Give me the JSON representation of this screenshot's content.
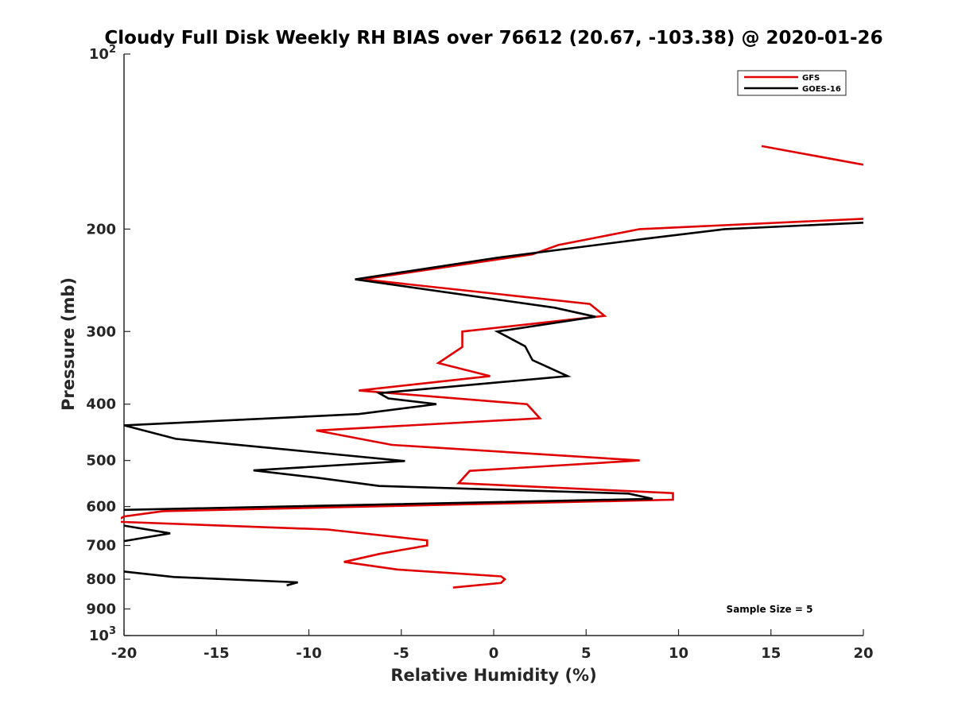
{
  "chart_data": {
    "type": "line",
    "title": "Cloudy Full Disk Weekly RH BIAS over 76612 (20.67, -103.38) @ 2020-01-26",
    "xlabel": "Relative Humidity (%)",
    "ylabel": "Pressure (mb)",
    "xlim": [
      -20,
      20
    ],
    "ylim": [
      100,
      1000
    ],
    "yscale": "log",
    "y_reversed": true,
    "x_ticks": [
      "-20",
      "-15",
      "-10",
      "-5",
      "0",
      "5",
      "10",
      "15",
      "20"
    ],
    "y_ticks": [
      {
        "value": 200,
        "label": "200"
      },
      {
        "value": 300,
        "label": "300"
      },
      {
        "value": 400,
        "label": "400"
      },
      {
        "value": 500,
        "label": "500"
      },
      {
        "value": 600,
        "label": "600"
      },
      {
        "value": 700,
        "label": "700"
      },
      {
        "value": 800,
        "label": "800"
      },
      {
        "value": 900,
        "label": "900"
      }
    ],
    "y_limit_labels": {
      "top": {
        "value": 100,
        "base": "10",
        "exp": "2"
      },
      "bottom": {
        "value": 1000,
        "base": "10",
        "exp": "3"
      }
    },
    "legend": {
      "position": "top-right",
      "entries": [
        "GFS",
        "GOES-16"
      ]
    },
    "annotation": "Sample Size = 5",
    "series": [
      {
        "name": "GFS",
        "color": "#e00000",
        "segments": [
          [
            [
              14.5,
              144
            ],
            [
              20,
              155
            ]
          ],
          [
            [
              20,
              192
            ],
            [
              7.9,
              200
            ],
            [
              3.5,
              213
            ],
            [
              2.1,
              221
            ],
            [
              -7.1,
              244
            ],
            [
              5.2,
              269
            ],
            [
              6.0,
              282
            ],
            [
              -1.7,
              300
            ],
            [
              -1.7,
              319
            ],
            [
              -3.0,
              340
            ],
            [
              -0.2,
              358
            ],
            [
              -7.3,
              379
            ],
            [
              1.8,
              400
            ],
            [
              2.5,
              423
            ],
            [
              -9.6,
              444
            ],
            [
              -5.5,
              470
            ],
            [
              7.9,
              500
            ],
            [
              -1.3,
              521
            ],
            [
              -1.9,
              547
            ],
            [
              9.7,
              569
            ],
            [
              9.7,
              584
            ],
            [
              -17.9,
              611
            ],
            [
              -20,
              624
            ],
            [
              -20.5,
              637
            ],
            [
              -9.0,
              657
            ],
            [
              -3.6,
              686
            ],
            [
              -3.6,
              700
            ],
            [
              -6.2,
              724
            ],
            [
              -8.1,
              747
            ],
            [
              -5.2,
              770
            ],
            [
              0.4,
              791
            ],
            [
              0.6,
              800
            ],
            [
              0.4,
              812
            ],
            [
              -2.2,
              827
            ]
          ]
        ]
      },
      {
        "name": "GOES-16",
        "color": "#000000",
        "segments": [
          [
            [
              20,
              195
            ],
            [
              12.5,
              200
            ],
            [
              8.1,
              208
            ],
            [
              0.2,
              224
            ],
            [
              -7.5,
              244
            ],
            [
              3.3,
              273
            ],
            [
              5.5,
              283
            ],
            [
              0.2,
              300
            ],
            [
              1.7,
              318
            ],
            [
              2.1,
              336
            ],
            [
              4.0,
              358
            ],
            [
              -6.2,
              383
            ],
            [
              -5.7,
              391
            ],
            [
              -3.1,
              400
            ],
            [
              -7.3,
              416
            ],
            [
              -20,
              435
            ],
            [
              -17.2,
              459
            ],
            [
              -4.8,
              501
            ],
            [
              -13.0,
              520
            ],
            [
              -9.6,
              535
            ],
            [
              -6.2,
              553
            ],
            [
              7.3,
              570
            ],
            [
              8.6,
              582
            ],
            [
              -20,
              608
            ]
          ],
          [
            [
              -20,
              647
            ],
            [
              -17.5,
              667
            ],
            [
              -20,
              688
            ]
          ],
          [
            [
              -20,
              776
            ],
            [
              -17.3,
              793
            ],
            [
              -10.6,
              810
            ],
            [
              -11.2,
              820
            ]
          ]
        ]
      }
    ]
  }
}
